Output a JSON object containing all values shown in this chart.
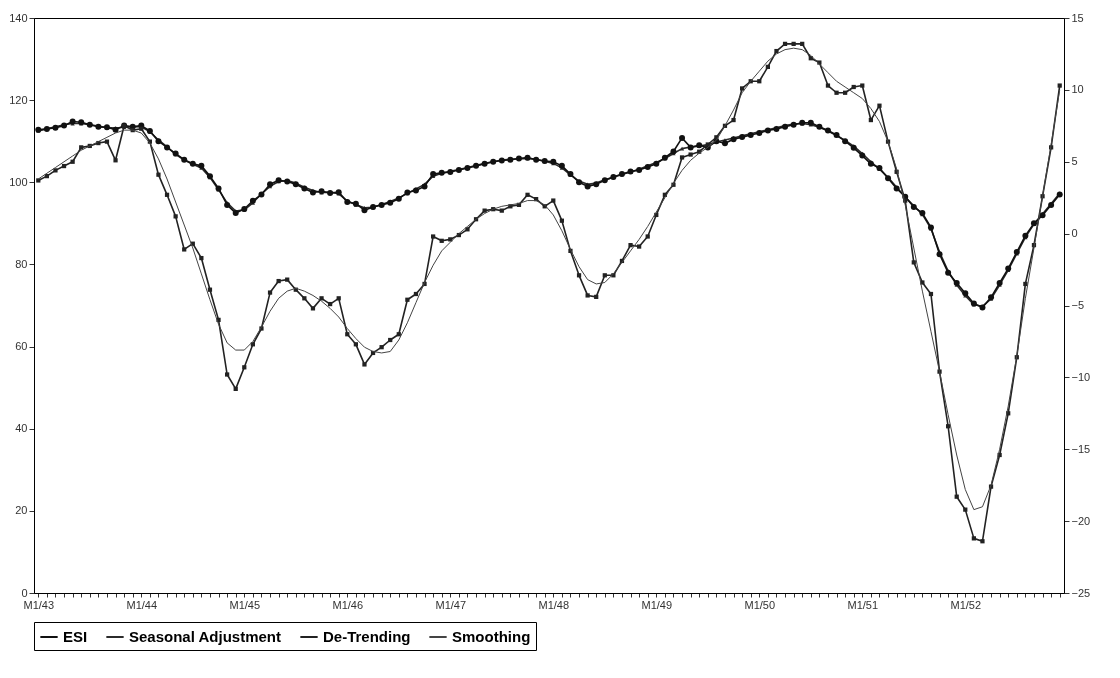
{
  "chart_data": {
    "type": "line",
    "categories": [
      "M1/43",
      null,
      null,
      null,
      null,
      null,
      null,
      null,
      null,
      null,
      null,
      null,
      "M1/44",
      null,
      null,
      null,
      null,
      null,
      null,
      null,
      null,
      null,
      null,
      null,
      "M1/45",
      null,
      null,
      null,
      null,
      null,
      null,
      null,
      null,
      null,
      null,
      null,
      "M1/46",
      null,
      null,
      null,
      null,
      null,
      null,
      null,
      null,
      null,
      null,
      null,
      "M1/47",
      null,
      null,
      null,
      null,
      null,
      null,
      null,
      null,
      null,
      null,
      null,
      "M1/48",
      null,
      null,
      null,
      null,
      null,
      null,
      null,
      null,
      null,
      null,
      null,
      "M1/49",
      null,
      null,
      null,
      null,
      null,
      null,
      null,
      null,
      null,
      null,
      null,
      "M1/50",
      null,
      null,
      null,
      null,
      null,
      null,
      null,
      null,
      null,
      null,
      null,
      "M1/51",
      null,
      null,
      null,
      null,
      null,
      null,
      null,
      null,
      null,
      null,
      null,
      "M1/52",
      null,
      null,
      null,
      null,
      null,
      null,
      null,
      null,
      null,
      null,
      null
    ],
    "ylim": [
      0,
      140
    ],
    "yticks": [
      0,
      20,
      40,
      60,
      80,
      100,
      120,
      140
    ],
    "y2lim": [
      -25,
      15
    ],
    "y2ticks": [
      -25,
      -20,
      -15,
      -10,
      -5,
      0,
      5,
      10,
      15
    ],
    "legend": "bottom",
    "series": [
      {
        "name": "ESI",
        "color": "#111111",
        "marker": "circle",
        "values": [
          112.8,
          113,
          113.3,
          113.8,
          114.8,
          114.6,
          114,
          113.5,
          113.4,
          112.8,
          113.8,
          113.5,
          113.8,
          112.5,
          110,
          108.5,
          107,
          105.5,
          104.5,
          104,
          101.5,
          98.5,
          94.5,
          92.5,
          93.5,
          95.5,
          97,
          99.5,
          100.5,
          100.2,
          99.5,
          98.5,
          97.5,
          97.8,
          97.4,
          97.6,
          95.2,
          94.8,
          93.2,
          94,
          94.5,
          95,
          96,
          97.5,
          98,
          99,
          102,
          102.3,
          102.5,
          103,
          103.5,
          104,
          104.5,
          105,
          105.3,
          105.5,
          105.8,
          106,
          105.5,
          105.2,
          105,
          104,
          102,
          100,
          99,
          99.5,
          100.5,
          101.3,
          102,
          102.6,
          103,
          103.7,
          104.5,
          106,
          107.5,
          110.8,
          108.5,
          109,
          108.5,
          110,
          109.5,
          110.5,
          111,
          111.5,
          112,
          112.6,
          113,
          113.5,
          114,
          114.5,
          114.5,
          113.5,
          112.6,
          111.5,
          110,
          108.4,
          106.5,
          104.5,
          103.5,
          101,
          98.5,
          96.5,
          94,
          92.5,
          89,
          82.5,
          78,
          75.5,
          73,
          70.5,
          69.5,
          72,
          75.5,
          79,
          83,
          87,
          90,
          92,
          94.5,
          97
        ]
      },
      {
        "name": "Seasonal Adjustment",
        "color": "#2b2b2b",
        "marker": "triangle",
        "values": [
          112.5,
          113,
          113.5,
          114,
          114.3,
          114.3,
          114,
          113.7,
          113.3,
          113.2,
          113.4,
          113.6,
          113.5,
          112.3,
          110.3,
          108.6,
          106.8,
          105.4,
          104.4,
          103.5,
          101.2,
          98.2,
          95,
          93,
          93.3,
          95,
          97.2,
          99,
          100.2,
          100.4,
          99.8,
          98.8,
          98,
          97.5,
          97.6,
          97.2,
          95.5,
          94.5,
          93.8,
          93.9,
          94.6,
          95.3,
          96.2,
          97.3,
          98.4,
          99.5,
          101.5,
          102.2,
          102.7,
          103.1,
          103.6,
          104.1,
          104.6,
          105,
          105.4,
          105.6,
          105.7,
          105.8,
          105.6,
          105.1,
          104.6,
          103.5,
          101.8,
          100.3,
          99.5,
          99.8,
          100.6,
          101.2,
          101.9,
          102.5,
          103.2,
          104,
          104.8,
          105.8,
          107,
          108.2,
          108.6,
          108.8,
          109.2,
          109.8,
          110.3,
          110.8,
          111.3,
          111.8,
          112.3,
          112.8,
          113.3,
          113.8,
          114.2,
          114.3,
          114,
          113.4,
          112.5,
          111.4,
          110.2,
          108.8,
          107,
          105,
          103.2,
          101.2,
          98.8,
          96.4,
          94.3,
          92.2,
          88.7,
          83,
          78.4,
          75,
          72.4,
          70.2,
          69.8,
          71.6,
          75,
          78.6,
          82.6,
          86.6,
          89.8,
          92.3,
          94.8,
          97.3
        ]
      },
      {
        "name": "De-Trending",
        "color": "#222222",
        "marker": "square",
        "axis": "y2",
        "values": [
          3.7,
          4.0,
          4.4,
          4.7,
          5.0,
          6.0,
          6.1,
          6.3,
          6.4,
          5.1,
          7.5,
          7.2,
          7.3,
          6.4,
          4.1,
          2.7,
          1.2,
          -1.1,
          -0.7,
          -1.7,
          -3.9,
          -6.0,
          -9.8,
          -10.8,
          -9.3,
          -7.7,
          -6.6,
          -4.1,
          -3.3,
          -3.2,
          -3.9,
          -4.5,
          -5.2,
          -4.5,
          -4.9,
          -4.5,
          -7.0,
          -7.7,
          -9.1,
          -8.3,
          -7.9,
          -7.4,
          -7.0,
          -4.6,
          -4.2,
          -3.5,
          -0.2,
          -0.5,
          -0.4,
          -0.1,
          0.3,
          1.0,
          1.6,
          1.7,
          1.6,
          1.9,
          2.0,
          2.7,
          2.4,
          1.9,
          2.3,
          0.9,
          -1.2,
          -2.9,
          -4.3,
          -4.4,
          -2.9,
          -2.9,
          -1.9,
          -0.8,
          -0.9,
          -0.2,
          1.3,
          2.7,
          3.4,
          5.3,
          5.5,
          5.7,
          6.2,
          6.7,
          7.5,
          7.9,
          10.1,
          10.6,
          10.6,
          11.6,
          12.7,
          13.2,
          13.2,
          13.2,
          12.2,
          11.9,
          10.3,
          9.8,
          9.8,
          10.2,
          10.3,
          7.9,
          8.9,
          6.4,
          4.3,
          2.3,
          -2,
          -3.4,
          -4.2,
          -9.6,
          -13.4,
          -18.3,
          -19.2,
          -21.2,
          -21.4,
          -17.6,
          -15.4,
          -12.5,
          -8.6,
          -3.5,
          -0.8,
          2.6,
          6,
          10.3
        ]
      },
      {
        "name": "Smoothing",
        "color": "#444444",
        "marker": "none",
        "axis": "y2",
        "values": [
          3.8,
          4.2,
          4.6,
          5.0,
          5.4,
          5.8,
          6.1,
          6.4,
          6.7,
          7.0,
          7.2,
          7.2,
          7.0,
          6.3,
          5.2,
          3.8,
          2.2,
          0.6,
          -1.0,
          -2.8,
          -4.6,
          -6.3,
          -7.6,
          -8.1,
          -8.1,
          -7.5,
          -6.5,
          -5.4,
          -4.5,
          -4.0,
          -3.8,
          -4.0,
          -4.3,
          -4.7,
          -5.2,
          -5.8,
          -6.6,
          -7.3,
          -7.9,
          -8.2,
          -8.3,
          -8.2,
          -7.4,
          -6.2,
          -4.8,
          -3.4,
          -2.2,
          -1.2,
          -0.6,
          0,
          0.5,
          1.0,
          1.4,
          1.7,
          1.9,
          2.0,
          2.1,
          2.3,
          2.3,
          2.0,
          1.3,
          0.2,
          -1.1,
          -2.3,
          -3.2,
          -3.5,
          -3.4,
          -2.8,
          -2.0,
          -1.2,
          -0.4,
          0.5,
          1.5,
          2.5,
          3.5,
          4.4,
          5.1,
          5.6,
          6.0,
          6.5,
          7.5,
          8.6,
          9.8,
          10.6,
          11.3,
          12,
          12.5,
          12.8,
          12.9,
          12.8,
          12.4,
          11.8,
          11.2,
          10.6,
          10.2,
          9.8,
          9.4,
          8.7,
          7.8,
          6.4,
          4.5,
          2.0,
          -1.0,
          -4.0,
          -6.8,
          -9.6,
          -12.6,
          -15.4,
          -17.8,
          -19.2,
          -19.0,
          -17.5,
          -15.0,
          -12.0,
          -8.5,
          -4.5,
          -1.0,
          2.6,
          6.2,
          10.0
        ]
      }
    ]
  }
}
